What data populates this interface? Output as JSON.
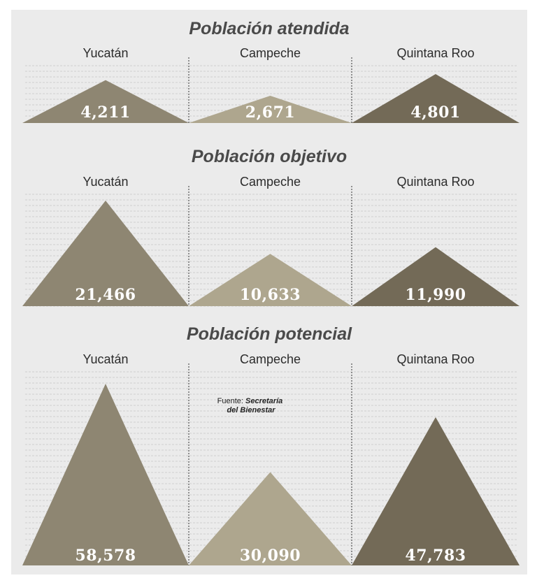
{
  "colors": {
    "background": "#ebebeb",
    "yucatan": "#8e8672",
    "campeche": "#aea68e",
    "quintana_roo": "#736a57",
    "divider": "#333333",
    "gridline": "#cfcfcf",
    "value_text": "#ffffff"
  },
  "chart_data": [
    {
      "type": "area",
      "title": "Población atendida",
      "categories": [
        "Yucatán",
        "Campeche",
        "Quintana Roo"
      ],
      "values": [
        4211,
        2671,
        4801
      ],
      "value_labels": [
        "4,211",
        "2,671",
        "4,801"
      ]
    },
    {
      "type": "area",
      "title": "Población objetivo",
      "categories": [
        "Yucatán",
        "Campeche",
        "Quintana Roo"
      ],
      "values": [
        21466,
        10633,
        11990
      ],
      "value_labels": [
        "21,466",
        "10,633",
        "11,990"
      ]
    },
    {
      "type": "area",
      "title": "Población potencial",
      "categories": [
        "Yucatán",
        "Campeche",
        "Quintana Roo"
      ],
      "values": [
        58578,
        30090,
        47783
      ],
      "value_labels": [
        "58,578",
        "30,090",
        "47,783"
      ]
    }
  ],
  "source": {
    "prefix": "Fuente: ",
    "line1": "Secretaría",
    "line2": "del Bienestar"
  }
}
